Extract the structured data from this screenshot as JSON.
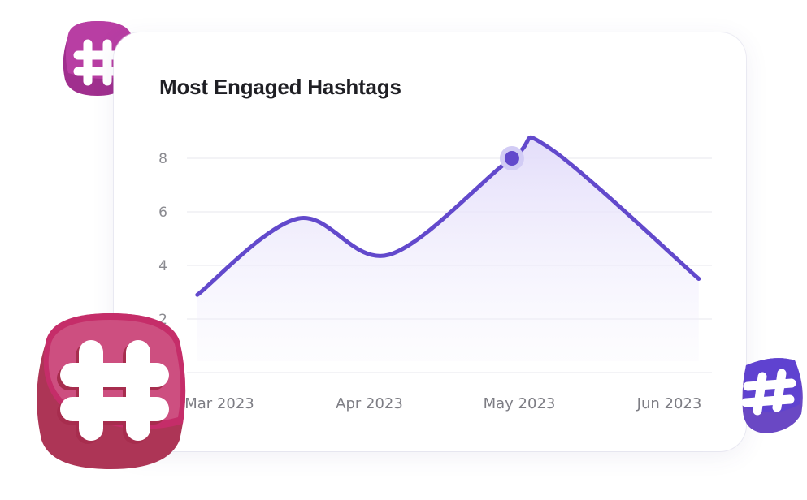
{
  "card": {
    "title": "Most Engaged Hashtags"
  },
  "decorations": [
    {
      "icon": "hashtag-icon",
      "color": "#b03a9c"
    },
    {
      "icon": "hashtag-icon",
      "color": "#cc4d7e"
    },
    {
      "icon": "hashtag-icon",
      "color": "#6249cc"
    }
  ],
  "chart_data": {
    "type": "area",
    "title": "Most Engaged Hashtags",
    "xlabel": "",
    "ylabel": "",
    "x_ticks": [
      "Mar 2023",
      "Apr 2023",
      "May 2023",
      "Jun 2023"
    ],
    "y_ticks": [
      0,
      2,
      4,
      6,
      8
    ],
    "y_tick_labels": [
      "2",
      "4",
      "6",
      "8"
    ],
    "ylim": [
      0,
      8
    ],
    "grid": true,
    "smooth": true,
    "line_color": "#6249cc",
    "fill_color": "#e6e1fb",
    "series": [
      {
        "points": [
          {
            "x": "2023-02-27",
            "y": 2.9
          },
          {
            "x": "2023-03-17",
            "y": 5.75
          },
          {
            "x": "2023-04-05",
            "y": 4.4
          },
          {
            "x": "2023-04-30",
            "y": 8.0
          },
          {
            "x": "2023-05-07",
            "y": 8.4
          },
          {
            "x": "2023-06-07",
            "y": 3.5
          }
        ]
      }
    ],
    "highlighted_point": {
      "x": "2023-04-30",
      "y": 8.0
    }
  }
}
